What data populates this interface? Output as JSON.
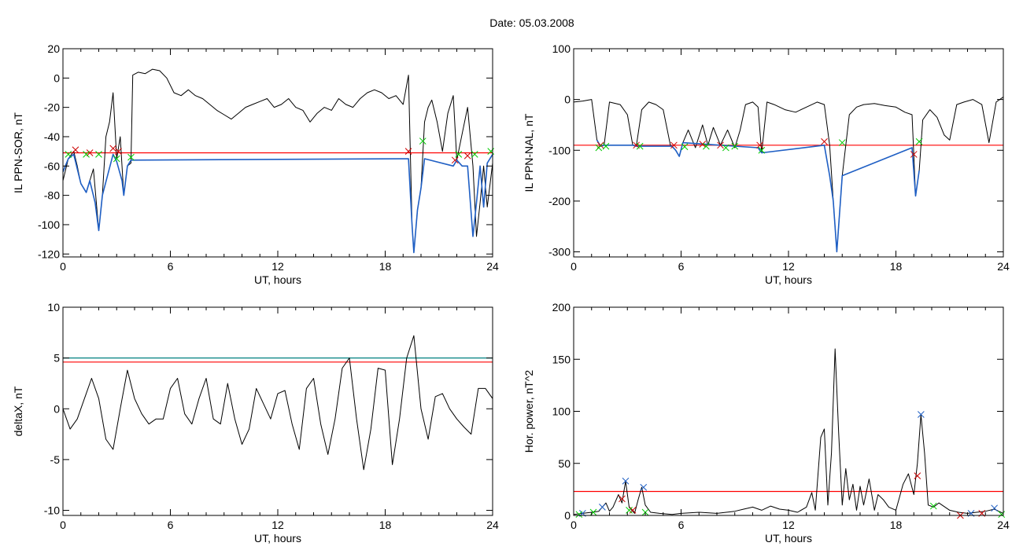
{
  "figure": {
    "title": "Date:  05.03.2008"
  },
  "chart_data": [
    {
      "type": "line",
      "xlabel": "UT, hours",
      "ylabel": "IL PPN-SOR, nT",
      "xlim": [
        0,
        24
      ],
      "ylim": [
        -122,
        20
      ],
      "xticks": [
        0,
        6,
        12,
        18,
        24
      ],
      "yticks": [
        20,
        0,
        -20,
        -40,
        -60,
        -80,
        -100,
        -120
      ],
      "grid": false,
      "series": [
        {
          "color": "#000000",
          "x": [
            0,
            0.3,
            0.6,
            0.8,
            1.0,
            1.3,
            1.5,
            1.7,
            2.0,
            2.2,
            2.4,
            2.6,
            2.8,
            3.0,
            3.2,
            3.4,
            3.6,
            3.8,
            3.9,
            4.2,
            4.6,
            5.0,
            5.4,
            5.8,
            6.2,
            6.6,
            7.0,
            7.4,
            7.8,
            8.2,
            8.6,
            9.0,
            9.4,
            9.8,
            10.2,
            10.6,
            11.0,
            11.4,
            11.8,
            12.2,
            12.6,
            13.0,
            13.4,
            13.8,
            14.2,
            14.6,
            15.0,
            15.4,
            15.8,
            16.2,
            16.6,
            17.0,
            17.4,
            17.8,
            18.2,
            18.6,
            19.0,
            19.3,
            19.5,
            19.6,
            19.8,
            20.0,
            20.2,
            20.4,
            20.6,
            20.9,
            21.2,
            21.5,
            21.8,
            22.0,
            22.3,
            22.6,
            22.9,
            23.1,
            23.3,
            23.5,
            23.7,
            24.0
          ],
          "y": [
            -70,
            -55,
            -50,
            -60,
            -72,
            -78,
            -70,
            -62,
            -104,
            -80,
            -40,
            -30,
            -10,
            -55,
            -40,
            -80,
            -60,
            -58,
            2,
            4,
            3,
            6,
            5,
            0,
            -10,
            -12,
            -8,
            -12,
            -14,
            -18,
            -22,
            -25,
            -28,
            -24,
            -20,
            -18,
            -16,
            -14,
            -20,
            -18,
            -14,
            -20,
            -22,
            -30,
            -24,
            -20,
            -22,
            -14,
            -18,
            -20,
            -14,
            -10,
            -8,
            -10,
            -14,
            -12,
            -18,
            2,
            -100,
            -119,
            -90,
            -75,
            -30,
            -20,
            -15,
            -30,
            -50,
            -24,
            -12,
            -56,
            -38,
            -20,
            -60,
            -108,
            -85,
            -60,
            -88,
            -58
          ]
        },
        {
          "color": "#1f5fc4",
          "x": [
            0,
            0.3,
            0.6,
            1.0,
            1.3,
            1.5,
            1.8,
            2.0,
            2.2,
            2.8,
            3.0,
            3.3,
            3.4,
            3.6,
            3.8,
            19.3,
            19.5,
            19.6,
            19.8,
            20.0,
            20.2,
            21.8,
            22.0,
            22.3,
            22.6,
            22.9,
            23.1,
            23.3,
            23.5,
            23.7,
            24.0
          ],
          "y": [
            -64,
            -55,
            -52,
            -72,
            -78,
            -70,
            -85,
            -104,
            -80,
            -52,
            -57,
            -70,
            -80,
            -60,
            -56,
            -55,
            -100,
            -119,
            -90,
            -75,
            -55,
            -60,
            -56,
            -60,
            -60,
            -108,
            -85,
            -60,
            -88,
            -58,
            -52
          ]
        }
      ],
      "threshold_lines": [
        {
          "value": -51,
          "color": "#ff0000"
        }
      ],
      "markers": [
        {
          "x": 0.7,
          "y": -49,
          "color": "#cc0000"
        },
        {
          "x": 1.5,
          "y": -51,
          "color": "#cc0000"
        },
        {
          "x": 2.8,
          "y": -48,
          "color": "#cc0000"
        },
        {
          "x": 3.1,
          "y": -50,
          "color": "#cc0000"
        },
        {
          "x": 19.3,
          "y": -50,
          "color": "#cc0000"
        },
        {
          "x": 21.9,
          "y": -56,
          "color": "#cc0000"
        },
        {
          "x": 22.6,
          "y": -53,
          "color": "#cc0000"
        },
        {
          "x": 0.3,
          "y": -52,
          "color": "#00cc00"
        },
        {
          "x": 1.3,
          "y": -52,
          "color": "#00cc00"
        },
        {
          "x": 2.0,
          "y": -52,
          "color": "#00cc00"
        },
        {
          "x": 3.0,
          "y": -55,
          "color": "#00cc00"
        },
        {
          "x": 3.8,
          "y": -54,
          "color": "#00cc00"
        },
        {
          "x": 20.1,
          "y": -43,
          "color": "#00cc00"
        },
        {
          "x": 22.1,
          "y": -52,
          "color": "#00cc00"
        },
        {
          "x": 23.0,
          "y": -52,
          "color": "#00cc00"
        },
        {
          "x": 23.9,
          "y": -50,
          "color": "#00cc00"
        }
      ]
    },
    {
      "type": "line",
      "xlabel": "UT, hours",
      "ylabel": "IL PPN-NAL, nT",
      "xlim": [
        0,
        24
      ],
      "ylim": [
        -310,
        100
      ],
      "xticks": [
        0,
        6,
        12,
        18,
        24
      ],
      "yticks": [
        100,
        0,
        -100,
        -200,
        -300
      ],
      "grid": false,
      "series": [
        {
          "color": "#000000",
          "x": [
            0,
            0.5,
            1.0,
            1.3,
            1.5,
            1.7,
            2.0,
            2.6,
            3.0,
            3.3,
            3.5,
            3.8,
            4.2,
            4.6,
            5.0,
            5.4,
            5.7,
            5.9,
            6.1,
            6.4,
            6.8,
            7.2,
            7.5,
            7.8,
            8.2,
            8.6,
            9.0,
            9.3,
            9.6,
            10.0,
            10.3,
            10.5,
            10.8,
            11.2,
            11.8,
            12.4,
            13.0,
            13.6,
            14.0,
            14.3,
            14.5,
            14.7,
            15.0,
            15.4,
            15.8,
            16.2,
            16.8,
            17.4,
            18.0,
            18.5,
            18.9,
            19.1,
            19.3,
            19.5,
            19.9,
            20.3,
            20.7,
            21.0,
            21.4,
            21.8,
            22.3,
            22.8,
            23.2,
            23.6,
            24.0
          ],
          "y": [
            -5,
            -3,
            0,
            -80,
            -92,
            -90,
            -5,
            -10,
            -30,
            -90,
            -92,
            -20,
            -5,
            -10,
            -20,
            -90,
            -100,
            -112,
            -85,
            -60,
            -95,
            -50,
            -90,
            -55,
            -90,
            -60,
            -95,
            -60,
            -10,
            -5,
            -15,
            -105,
            -5,
            -10,
            -20,
            -25,
            -15,
            -5,
            -10,
            -90,
            -200,
            -300,
            -150,
            -30,
            -15,
            -10,
            -8,
            -12,
            -15,
            -25,
            -30,
            -190,
            -140,
            -40,
            -20,
            -35,
            -70,
            -80,
            -10,
            -5,
            0,
            -10,
            -85,
            -5,
            5
          ]
        },
        {
          "color": "#1f5fc4",
          "x": [
            1.3,
            1.5,
            1.7,
            3.3,
            3.5,
            5.5,
            5.7,
            5.9,
            6.1,
            10.3,
            10.5,
            14.0,
            14.3,
            14.5,
            14.7,
            15.0,
            18.9,
            19.1,
            19.3
          ],
          "y": [
            -80,
            -92,
            -90,
            -90,
            -92,
            -92,
            -100,
            -112,
            -85,
            -95,
            -105,
            -90,
            -150,
            -200,
            -300,
            -150,
            -95,
            -190,
            -140
          ]
        }
      ],
      "threshold_lines": [
        {
          "value": -90,
          "color": "#ff0000"
        }
      ],
      "markers": [
        {
          "x": 1.5,
          "y": -90,
          "color": "#cc0000"
        },
        {
          "x": 3.5,
          "y": -90,
          "color": "#cc0000"
        },
        {
          "x": 5.6,
          "y": -90,
          "color": "#cc0000"
        },
        {
          "x": 7.2,
          "y": -88,
          "color": "#cc0000"
        },
        {
          "x": 8.2,
          "y": -90,
          "color": "#cc0000"
        },
        {
          "x": 10.4,
          "y": -90,
          "color": "#cc0000"
        },
        {
          "x": 14.0,
          "y": -83,
          "color": "#cc0000"
        },
        {
          "x": 19.0,
          "y": -108,
          "color": "#cc0000"
        },
        {
          "x": 1.4,
          "y": -95,
          "color": "#00cc00"
        },
        {
          "x": 1.8,
          "y": -92,
          "color": "#00cc00"
        },
        {
          "x": 3.7,
          "y": -92,
          "color": "#00cc00"
        },
        {
          "x": 6.2,
          "y": -93,
          "color": "#00cc00"
        },
        {
          "x": 7.4,
          "y": -92,
          "color": "#00cc00"
        },
        {
          "x": 8.5,
          "y": -95,
          "color": "#00cc00"
        },
        {
          "x": 9.0,
          "y": -92,
          "color": "#00cc00"
        },
        {
          "x": 10.5,
          "y": -100,
          "color": "#00cc00"
        },
        {
          "x": 15.0,
          "y": -85,
          "color": "#00cc00"
        },
        {
          "x": 19.3,
          "y": -83,
          "color": "#00cc00"
        }
      ]
    },
    {
      "type": "line",
      "xlabel": "UT, hours",
      "ylabel": "deltaX, nT",
      "xlim": [
        0,
        24
      ],
      "ylim": [
        -10.5,
        10
      ],
      "xticks": [
        0,
        6,
        12,
        18,
        24
      ],
      "yticks": [
        10,
        5,
        0,
        -5,
        -10
      ],
      "grid": false,
      "series": [
        {
          "color": "#000000",
          "x": [
            0,
            0.4,
            0.8,
            1.2,
            1.6,
            2.0,
            2.4,
            2.8,
            3.2,
            3.6,
            4.0,
            4.4,
            4.8,
            5.2,
            5.6,
            6.0,
            6.4,
            6.8,
            7.2,
            7.6,
            8.0,
            8.4,
            8.8,
            9.2,
            9.6,
            10.0,
            10.4,
            10.8,
            11.2,
            11.6,
            12.0,
            12.4,
            12.8,
            13.2,
            13.6,
            14.0,
            14.4,
            14.8,
            15.2,
            15.6,
            16.0,
            16.4,
            16.8,
            17.2,
            17.6,
            18.0,
            18.4,
            18.8,
            19.2,
            19.6,
            20.0,
            20.4,
            20.8,
            21.2,
            21.6,
            22.0,
            22.4,
            22.8,
            23.2,
            23.6,
            24.0
          ],
          "y": [
            0,
            -2,
            -1,
            1,
            3,
            1,
            -3,
            -4,
            0,
            3.8,
            1,
            -0.5,
            -1.5,
            -1,
            -1,
            2,
            3,
            -0.5,
            -1.5,
            1,
            3,
            -1,
            -1.5,
            2.5,
            -1,
            -3.5,
            -2,
            2,
            0.5,
            -1,
            1.5,
            1.8,
            -1.5,
            -4,
            2,
            3,
            -1.5,
            -4.5,
            -1,
            4,
            5,
            -1,
            -6,
            -2,
            4,
            3.8,
            -5.5,
            -1,
            5,
            7.2,
            0,
            -3,
            1.2,
            1.5,
            0,
            -1,
            -1.8,
            -2.5,
            2,
            2,
            1
          ]
        }
      ],
      "threshold_lines": [
        {
          "value": 5,
          "color": "#008080"
        },
        {
          "value": 4.6,
          "color": "#ff0000"
        }
      ],
      "markers": []
    },
    {
      "type": "line",
      "xlabel": "UT, hours",
      "ylabel": "Hor. power, nT^2",
      "xlim": [
        0,
        24
      ],
      "ylim": [
        0,
        200
      ],
      "xticks": [
        0,
        6,
        12,
        18,
        24
      ],
      "yticks": [
        200,
        150,
        100,
        50,
        0
      ],
      "grid": false,
      "series": [
        {
          "color": "#000000",
          "x": [
            0,
            0.5,
            1.0,
            1.4,
            1.6,
            1.8,
            2.0,
            2.2,
            2.5,
            2.7,
            2.9,
            3.1,
            3.4,
            3.6,
            3.8,
            4.0,
            4.3,
            4.8,
            5.5,
            6.0,
            7.0,
            8.0,
            9.0,
            9.5,
            10.0,
            10.5,
            11.0,
            11.5,
            12.0,
            12.5,
            13.0,
            13.3,
            13.5,
            13.8,
            14.0,
            14.2,
            14.4,
            14.6,
            14.8,
            15.0,
            15.2,
            15.4,
            15.6,
            15.8,
            16.0,
            16.2,
            16.5,
            16.8,
            17.0,
            17.3,
            17.6,
            18.0,
            18.4,
            18.7,
            19.0,
            19.2,
            19.4,
            19.6,
            19.8,
            20.1,
            20.4,
            21.0,
            21.5,
            22.0,
            22.5,
            23.0,
            23.5,
            24.0
          ],
          "y": [
            1,
            2,
            3,
            4,
            8,
            12,
            4,
            8,
            20,
            12,
            33,
            8,
            2,
            15,
            27,
            10,
            3,
            2,
            1,
            2,
            3,
            2,
            4,
            6,
            8,
            5,
            9,
            6,
            5,
            3,
            8,
            22,
            5,
            75,
            83,
            10,
            60,
            160,
            80,
            10,
            45,
            15,
            30,
            5,
            28,
            10,
            35,
            5,
            20,
            15,
            8,
            5,
            30,
            40,
            20,
            50,
            97,
            60,
            10,
            8,
            12,
            5,
            3,
            2,
            3,
            4,
            6,
            2
          ]
        }
      ],
      "threshold_lines": [
        {
          "value": 23,
          "color": "#ff0000"
        }
      ],
      "markers": [
        {
          "x": 2.9,
          "y": 33,
          "color": "#1f5fc4"
        },
        {
          "x": 3.9,
          "y": 27,
          "color": "#1f5fc4"
        },
        {
          "x": 1.6,
          "y": 8,
          "color": "#1f5fc4"
        },
        {
          "x": 0.5,
          "y": 2,
          "color": "#1f5fc4"
        },
        {
          "x": 19.4,
          "y": 97,
          "color": "#1f5fc4"
        },
        {
          "x": 22.2,
          "y": 2,
          "color": "#1f5fc4"
        },
        {
          "x": 23.5,
          "y": 7,
          "color": "#1f5fc4"
        },
        {
          "x": 2.7,
          "y": 16,
          "color": "#cc0000"
        },
        {
          "x": 3.3,
          "y": 5,
          "color": "#cc0000"
        },
        {
          "x": 19.2,
          "y": 38,
          "color": "#cc0000"
        },
        {
          "x": 21.6,
          "y": 0,
          "color": "#cc0000"
        },
        {
          "x": 22.8,
          "y": 2,
          "color": "#cc0000"
        },
        {
          "x": 0.3,
          "y": 1,
          "color": "#00cc00"
        },
        {
          "x": 1.1,
          "y": 3,
          "color": "#00cc00"
        },
        {
          "x": 3.1,
          "y": 5,
          "color": "#00cc00"
        },
        {
          "x": 4.0,
          "y": 3,
          "color": "#00cc00"
        },
        {
          "x": 20.1,
          "y": 9,
          "color": "#00cc00"
        },
        {
          "x": 23.9,
          "y": 1,
          "color": "#00cc00"
        }
      ]
    }
  ]
}
